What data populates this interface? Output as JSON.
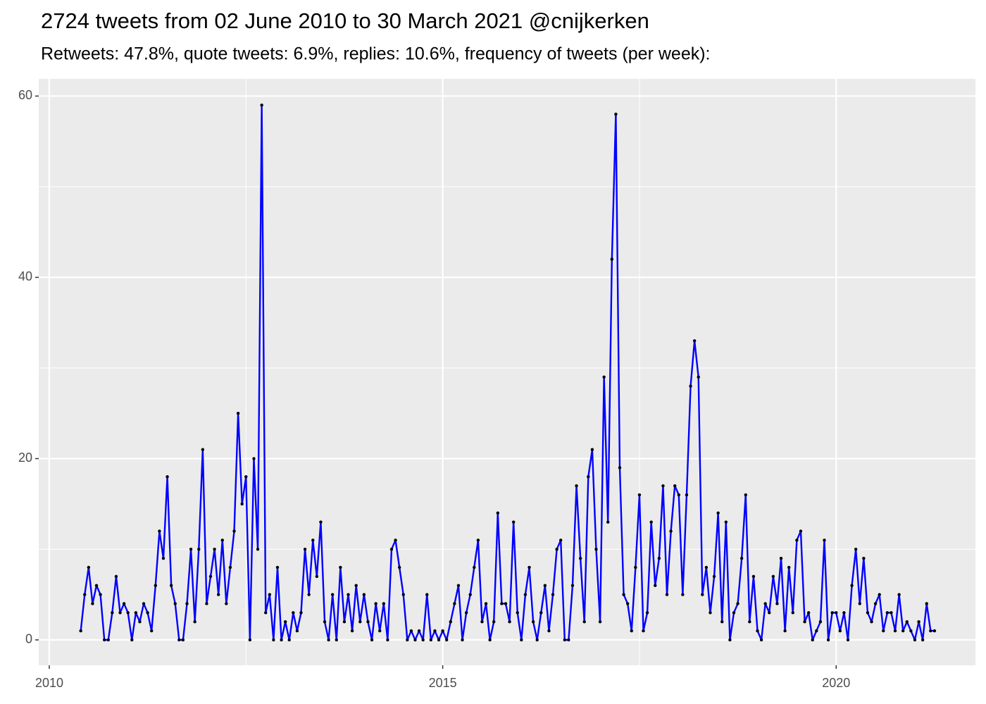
{
  "chart_data": {
    "type": "line",
    "title": "2724 tweets from 02 June 2010 to 30 March 2021 @cnijkerken",
    "subtitle": "Retweets: 47.8%, quote tweets: 6.9%, replies: 10.6%, frequency of tweets (per week):",
    "x": [
      2010.4,
      2010.45,
      2010.5,
      2010.55,
      2010.6,
      2010.65,
      2010.7,
      2010.75,
      2010.8,
      2010.85,
      2010.9,
      2010.95,
      2011.0,
      2011.05,
      2011.1,
      2011.15,
      2011.2,
      2011.25,
      2011.3,
      2011.35,
      2011.4,
      2011.45,
      2011.5,
      2011.55,
      2011.6,
      2011.65,
      2011.7,
      2011.75,
      2011.8,
      2011.85,
      2011.9,
      2011.95,
      2012.0,
      2012.05,
      2012.1,
      2012.15,
      2012.2,
      2012.25,
      2012.3,
      2012.35,
      2012.4,
      2012.45,
      2012.5,
      2012.55,
      2012.6,
      2012.65,
      2012.7,
      2012.75,
      2012.8,
      2012.85,
      2012.9,
      2012.95,
      2013.0,
      2013.05,
      2013.1,
      2013.15,
      2013.2,
      2013.25,
      2013.3,
      2013.35,
      2013.4,
      2013.45,
      2013.5,
      2013.55,
      2013.6,
      2013.65,
      2013.7,
      2013.75,
      2013.8,
      2013.85,
      2013.9,
      2013.95,
      2014.0,
      2014.05,
      2014.1,
      2014.15,
      2014.2,
      2014.25,
      2014.3,
      2014.35,
      2014.4,
      2014.45,
      2014.5,
      2014.55,
      2014.6,
      2014.65,
      2014.7,
      2014.75,
      2014.8,
      2014.85,
      2014.9,
      2014.95,
      2015.0,
      2015.05,
      2015.1,
      2015.15,
      2015.2,
      2015.25,
      2015.3,
      2015.35,
      2015.4,
      2015.45,
      2015.5,
      2015.55,
      2015.6,
      2015.65,
      2015.7,
      2015.75,
      2015.8,
      2015.85,
      2015.9,
      2015.95,
      2016.0,
      2016.05,
      2016.1,
      2016.15,
      2016.2,
      2016.25,
      2016.3,
      2016.35,
      2016.4,
      2016.45,
      2016.5,
      2016.55,
      2016.6,
      2016.65,
      2016.7,
      2016.75,
      2016.8,
      2016.85,
      2016.9,
      2016.95,
      2017.0,
      2017.05,
      2017.1,
      2017.15,
      2017.2,
      2017.25,
      2017.3,
      2017.35,
      2017.4,
      2017.45,
      2017.5,
      2017.55,
      2017.6,
      2017.65,
      2017.7,
      2017.75,
      2017.8,
      2017.85,
      2017.9,
      2017.95,
      2018.0,
      2018.05,
      2018.1,
      2018.15,
      2018.2,
      2018.25,
      2018.3,
      2018.35,
      2018.4,
      2018.45,
      2018.5,
      2018.55,
      2018.6,
      2018.65,
      2018.7,
      2018.75,
      2018.8,
      2018.85,
      2018.9,
      2018.95,
      2019.0,
      2019.05,
      2019.1,
      2019.15,
      2019.2,
      2019.25,
      2019.3,
      2019.35,
      2019.4,
      2019.45,
      2019.5,
      2019.55,
      2019.6,
      2019.65,
      2019.7,
      2019.75,
      2019.8,
      2019.85,
      2019.9,
      2019.95,
      2020.0,
      2020.05,
      2020.1,
      2020.15,
      2020.2,
      2020.25,
      2020.3,
      2020.35,
      2020.4,
      2020.45,
      2020.5,
      2020.55,
      2020.6,
      2020.65,
      2020.7,
      2020.75,
      2020.8,
      2020.85,
      2020.9,
      2020.95,
      2021.0,
      2021.05,
      2021.1,
      2021.15,
      2021.2,
      2021.25
    ],
    "values": [
      1,
      5,
      8,
      4,
      6,
      5,
      0,
      0,
      3,
      7,
      3,
      4,
      3,
      0,
      3,
      2,
      4,
      3,
      1,
      6,
      12,
      9,
      18,
      6,
      4,
      0,
      0,
      4,
      10,
      2,
      10,
      21,
      4,
      7,
      10,
      5,
      11,
      4,
      8,
      12,
      25,
      15,
      18,
      0,
      20,
      10,
      59,
      3,
      5,
      0,
      8,
      0,
      2,
      0,
      3,
      1,
      3,
      10,
      5,
      11,
      7,
      13,
      2,
      0,
      5,
      0,
      8,
      2,
      5,
      1,
      6,
      2,
      5,
      2,
      0,
      4,
      1,
      4,
      0,
      10,
      11,
      8,
      5,
      0,
      1,
      0,
      1,
      0,
      5,
      0,
      1,
      0,
      1,
      0,
      2,
      4,
      6,
      0,
      3,
      5,
      8,
      11,
      2,
      4,
      0,
      2,
      14,
      4,
      4,
      2,
      13,
      3,
      0,
      5,
      8,
      2,
      0,
      3,
      6,
      1,
      5,
      10,
      11,
      0,
      0,
      6,
      17,
      9,
      2,
      18,
      21,
      10,
      2,
      29,
      13,
      42,
      58,
      19,
      5,
      4,
      1,
      8,
      16,
      1,
      3,
      13,
      6,
      9,
      17,
      5,
      12,
      17,
      16,
      5,
      16,
      28,
      33,
      29,
      5,
      8,
      3,
      7,
      14,
      2,
      13,
      0,
      3,
      4,
      9,
      16,
      2,
      7,
      1,
      0,
      4,
      3,
      7,
      4,
      9,
      1,
      8,
      3,
      11,
      12,
      2,
      3,
      0,
      1,
      2,
      11,
      0,
      3,
      3,
      1,
      3,
      0,
      6,
      10,
      4,
      9,
      3,
      2,
      4,
      5,
      1,
      3,
      3,
      1,
      5,
      1,
      2,
      1,
      0,
      2,
      0,
      4,
      1,
      1
    ],
    "color": "#0000ff",
    "point_color": "#000000",
    "xlim": [
      2009.866,
      2021.77
    ],
    "xticks": [
      2010,
      2015,
      2020
    ],
    "x_minor_ticks": [
      2012.5,
      2017.5
    ],
    "ylim": [
      -2.8,
      61.9
    ],
    "yticks": [
      0,
      20,
      40,
      60
    ],
    "y_minor_ticks": [
      10,
      30,
      50
    ],
    "grid": true
  }
}
